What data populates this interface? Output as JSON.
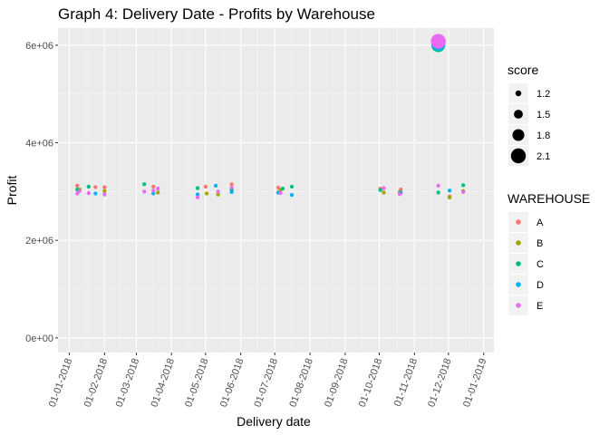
{
  "chart_data": {
    "type": "scatter",
    "title": "Graph 4: Delivery Date - Profits by Warehouse",
    "xlabel": "Delivery date",
    "ylabel": "Profit",
    "x_ticks": [
      "01-01-2018",
      "01-02-2018",
      "01-03-2018",
      "01-04-2018",
      "01-05-2018",
      "01-06-2018",
      "01-07-2018",
      "01-08-2018",
      "01-09-2018",
      "01-10-2018",
      "01-11-2018",
      "01-12-2018",
      "01-01-2019"
    ],
    "y_ticks": [
      {
        "value": 0,
        "label": "0e+00"
      },
      {
        "value": 2000000,
        "label": "2e+06"
      },
      {
        "value": 4000000,
        "label": "4e+06"
      },
      {
        "value": 6000000,
        "label": "6e+06"
      }
    ],
    "xlim": [
      "2017-12-22",
      "2019-01-10"
    ],
    "ylim": [
      -300000,
      6350000
    ],
    "grid": true,
    "background": "#ebebeb",
    "size_legend": {
      "title": "score",
      "entries": [
        {
          "label": "1.2",
          "value": 1.2
        },
        {
          "label": "1.5",
          "value": 1.5
        },
        {
          "label": "1.8",
          "value": 1.8
        },
        {
          "label": "2.1",
          "value": 2.1
        }
      ]
    },
    "color_legend": {
      "title": "WAREHOUSE",
      "entries": [
        {
          "label": "A",
          "color": "#F8766D"
        },
        {
          "label": "B",
          "color": "#A3A500"
        },
        {
          "label": "C",
          "color": "#00BF7D"
        },
        {
          "label": "D",
          "color": "#00B0F6"
        },
        {
          "label": "E",
          "color": "#E76BF3"
        }
      ]
    },
    "series": [
      {
        "warehouse": "A",
        "points": [
          {
            "x": "2018-01-08",
            "y": 3120000,
            "score": 1.0
          },
          {
            "x": "2018-01-24",
            "y": 3090000,
            "score": 1.0
          },
          {
            "x": "2018-02-01",
            "y": 3090000,
            "score": 1.0
          },
          {
            "x": "2018-03-16",
            "y": 3100000,
            "score": 1.0
          },
          {
            "x": "2018-05-01",
            "y": 3100000,
            "score": 1.0
          },
          {
            "x": "2018-05-24",
            "y": 3150000,
            "score": 1.0
          },
          {
            "x": "2018-07-04",
            "y": 3080000,
            "score": 1.0
          },
          {
            "x": "2018-10-02",
            "y": 3060000,
            "score": 1.0
          },
          {
            "x": "2018-10-20",
            "y": 3040000,
            "score": 1.0
          },
          {
            "x": "2018-11-22",
            "y": 6040000,
            "score": 2.0
          },
          {
            "x": "2018-12-02",
            "y": 2900000,
            "score": 1.0
          }
        ]
      },
      {
        "warehouse": "B",
        "points": [
          {
            "x": "2018-01-10",
            "y": 3040000,
            "score": 1.0
          },
          {
            "x": "2018-02-01",
            "y": 3010000,
            "score": 1.0
          },
          {
            "x": "2018-03-20",
            "y": 2980000,
            "score": 1.0
          },
          {
            "x": "2018-05-02",
            "y": 2960000,
            "score": 1.0
          },
          {
            "x": "2018-05-12",
            "y": 2940000,
            "score": 1.0
          },
          {
            "x": "2018-07-06",
            "y": 3030000,
            "score": 1.0
          },
          {
            "x": "2018-10-05",
            "y": 2980000,
            "score": 1.0
          },
          {
            "x": "2018-10-19",
            "y": 2990000,
            "score": 1.0
          },
          {
            "x": "2018-11-22",
            "y": 6020000,
            "score": 2.0
          },
          {
            "x": "2018-12-02",
            "y": 2880000,
            "score": 1.0
          },
          {
            "x": "2018-12-14",
            "y": 3010000,
            "score": 1.0
          }
        ]
      },
      {
        "warehouse": "C",
        "points": [
          {
            "x": "2018-01-08",
            "y": 3040000,
            "score": 1.0
          },
          {
            "x": "2018-01-18",
            "y": 3100000,
            "score": 1.0
          },
          {
            "x": "2018-03-08",
            "y": 3150000,
            "score": 1.0
          },
          {
            "x": "2018-04-24",
            "y": 3070000,
            "score": 1.0
          },
          {
            "x": "2018-05-24",
            "y": 3040000,
            "score": 1.0
          },
          {
            "x": "2018-07-08",
            "y": 3060000,
            "score": 1.0
          },
          {
            "x": "2018-07-16",
            "y": 3100000,
            "score": 1.0
          },
          {
            "x": "2018-10-02",
            "y": 3030000,
            "score": 1.0
          },
          {
            "x": "2018-11-22",
            "y": 2980000,
            "score": 1.0
          },
          {
            "x": "2018-11-22",
            "y": 6000000,
            "score": 2.0
          },
          {
            "x": "2018-12-14",
            "y": 3130000,
            "score": 1.0
          }
        ]
      },
      {
        "warehouse": "D",
        "points": [
          {
            "x": "2018-01-24",
            "y": 2960000,
            "score": 1.0
          },
          {
            "x": "2018-03-16",
            "y": 2960000,
            "score": 1.0
          },
          {
            "x": "2018-04-24",
            "y": 2940000,
            "score": 1.0
          },
          {
            "x": "2018-05-10",
            "y": 3120000,
            "score": 1.0
          },
          {
            "x": "2018-05-24",
            "y": 2990000,
            "score": 1.0
          },
          {
            "x": "2018-07-04",
            "y": 2980000,
            "score": 1.0
          },
          {
            "x": "2018-07-16",
            "y": 2930000,
            "score": 1.0
          },
          {
            "x": "2018-10-20",
            "y": 2980000,
            "score": 1.0
          },
          {
            "x": "2018-11-22",
            "y": 6030000,
            "score": 2.0
          },
          {
            "x": "2018-12-02",
            "y": 3020000,
            "score": 1.0
          }
        ]
      },
      {
        "warehouse": "E",
        "points": [
          {
            "x": "2018-01-08",
            "y": 2960000,
            "score": 1.0
          },
          {
            "x": "2018-01-10",
            "y": 3010000,
            "score": 1.0
          },
          {
            "x": "2018-01-18",
            "y": 2970000,
            "score": 1.0
          },
          {
            "x": "2018-02-01",
            "y": 2940000,
            "score": 1.0
          },
          {
            "x": "2018-03-08",
            "y": 3000000,
            "score": 1.0
          },
          {
            "x": "2018-03-16",
            "y": 3020000,
            "score": 1.0
          },
          {
            "x": "2018-03-20",
            "y": 3060000,
            "score": 1.0
          },
          {
            "x": "2018-04-24",
            "y": 2880000,
            "score": 1.0
          },
          {
            "x": "2018-05-12",
            "y": 3000000,
            "score": 1.0
          },
          {
            "x": "2018-05-24",
            "y": 3080000,
            "score": 1.0
          },
          {
            "x": "2018-07-06",
            "y": 2970000,
            "score": 1.0
          },
          {
            "x": "2018-10-05",
            "y": 3070000,
            "score": 1.0
          },
          {
            "x": "2018-10-19",
            "y": 2950000,
            "score": 1.0
          },
          {
            "x": "2018-11-22",
            "y": 3120000,
            "score": 1.0
          },
          {
            "x": "2018-11-22",
            "y": 6080000,
            "score": 2.1
          },
          {
            "x": "2018-12-14",
            "y": 2990000,
            "score": 1.0
          }
        ]
      }
    ]
  }
}
